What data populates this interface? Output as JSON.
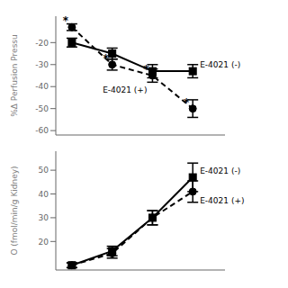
{
  "chart_data": [
    {
      "type": "line",
      "ylabel": "%Δ Perfusion Pressu",
      "x": [
        1,
        2,
        3,
        4
      ],
      "xlim": [
        0.6,
        4.8
      ],
      "ylim": [
        -62,
        -8
      ],
      "yticks": [
        -60,
        -50,
        -40,
        -30,
        -20
      ],
      "tick_labels": "y",
      "series": [
        {
          "name": "E-4021 (-)",
          "color": "#000000",
          "marker": "square",
          "line_style": "solid",
          "values": [
            -20,
            -25,
            -33,
            -33
          ],
          "yerr": [
            2.0,
            2.5,
            3.0,
            3.0
          ]
        },
        {
          "name": "E-4021 (+)",
          "color": "#000000",
          "marker": "circle",
          "line_style": "dashed",
          "values": [
            -13,
            -30,
            -35,
            -50
          ],
          "yerr": [
            1.5,
            2.5,
            3.0,
            4.0
          ]
        }
      ],
      "annotations": [
        {
          "text": "*",
          "x": 1,
          "y": -10
        },
        {
          "text": "*",
          "x": 2,
          "y": -27
        },
        {
          "text": "*",
          "x": 3,
          "y": -32
        },
        {
          "text": "*",
          "x": 4,
          "y": -47
        }
      ]
    },
    {
      "type": "line",
      "ylabel": "O (fmol/min/g Kidney)",
      "x": [
        1,
        2,
        3,
        4
      ],
      "xlim": [
        0.6,
        4.8
      ],
      "ylim": [
        8,
        58
      ],
      "yticks": [
        20,
        30,
        40,
        50
      ],
      "tick_labels": "y",
      "series": [
        {
          "name": "E-4021 (-)",
          "color": "#000000",
          "marker": "square",
          "line_style": "solid",
          "values": [
            10,
            16,
            30,
            47
          ],
          "yerr": [
            1.0,
            2.0,
            3.0,
            6.0
          ]
        },
        {
          "name": "E-4021 (+)",
          "color": "#000000",
          "marker": "circle",
          "line_style": "dashed",
          "values": [
            10,
            15,
            30,
            41
          ],
          "yerr": [
            1.0,
            2.0,
            3.0,
            4.5
          ]
        }
      ]
    }
  ]
}
